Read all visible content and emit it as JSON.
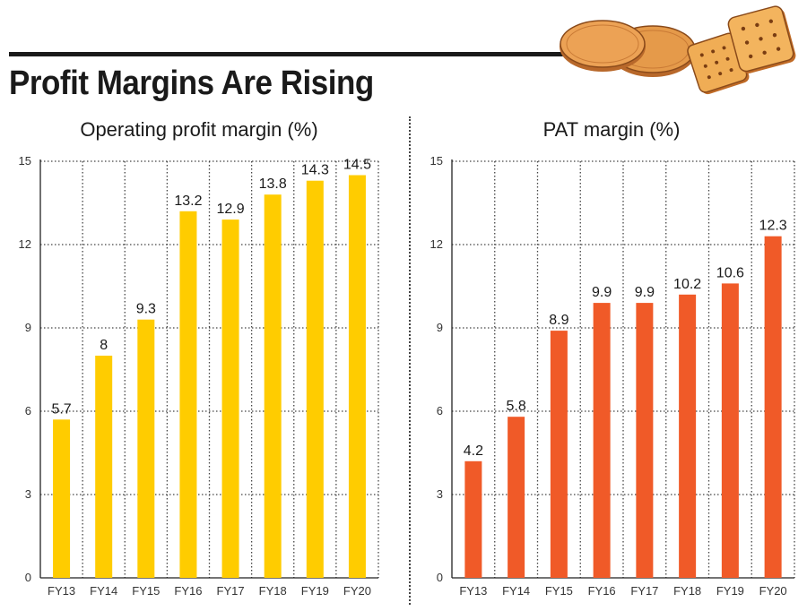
{
  "headline": "Profit Margins Are Rising",
  "colors": {
    "operating": "#FFCC00",
    "pat": "#F05A28"
  },
  "chart_data": [
    {
      "type": "bar",
      "title": "Operating profit margin (%)",
      "categories": [
        "FY13",
        "FY14",
        "FY15",
        "FY16",
        "FY17",
        "FY18",
        "FY19",
        "FY20"
      ],
      "values": [
        5.7,
        8,
        9.3,
        13.2,
        12.9,
        13.8,
        14.3,
        14.5
      ],
      "value_labels": [
        "5.7",
        "8",
        "9.3",
        "13.2",
        "12.9",
        "13.8",
        "14.3",
        "14.5"
      ],
      "yticks": [
        0,
        3,
        6,
        9,
        12,
        15
      ],
      "ylim": [
        0,
        15
      ],
      "xlabel": "",
      "ylabel": "",
      "grid": true
    },
    {
      "type": "bar",
      "title": "PAT margin (%)",
      "categories": [
        "FY13",
        "FY14",
        "FY15",
        "FY16",
        "FY17",
        "FY18",
        "FY19",
        "FY20"
      ],
      "values": [
        4.2,
        5.8,
        8.9,
        9.9,
        9.9,
        10.2,
        10.6,
        12.3
      ],
      "value_labels": [
        "4.2",
        "5.8",
        "8.9",
        "9.9",
        "9.9",
        "10.2",
        "10.6",
        "12.3"
      ],
      "yticks": [
        0,
        3,
        6,
        9,
        12,
        15
      ],
      "ylim": [
        0,
        15
      ],
      "xlabel": "",
      "ylabel": "",
      "grid": true
    }
  ]
}
